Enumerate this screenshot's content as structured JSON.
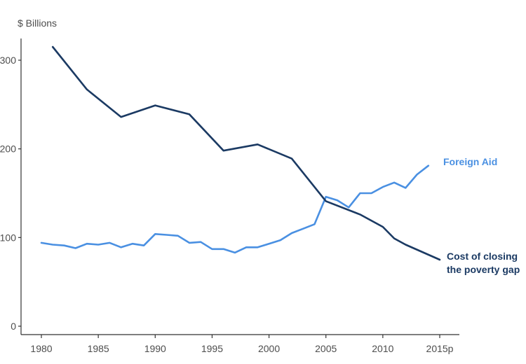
{
  "chart_data": {
    "type": "line",
    "title": "",
    "ylabel": "$ Billions",
    "xlabel": "",
    "xlim": [
      1980,
      2015
    ],
    "ylim": [
      0,
      320
    ],
    "x_ticks": [
      {
        "value": 1980,
        "label": "1980"
      },
      {
        "value": 1985,
        "label": "1985"
      },
      {
        "value": 1990,
        "label": "1990"
      },
      {
        "value": 1995,
        "label": "1995"
      },
      {
        "value": 2000,
        "label": "2000"
      },
      {
        "value": 2005,
        "label": "2005"
      },
      {
        "value": 2010,
        "label": "2010"
      },
      {
        "value": 2015,
        "label": "2015p"
      }
    ],
    "y_ticks": [
      {
        "value": 0,
        "label": "0"
      },
      {
        "value": 100,
        "label": "100"
      },
      {
        "value": 200,
        "label": "200"
      },
      {
        "value": 300,
        "label": "300"
      }
    ],
    "grid": false,
    "legend": "direct labels at line ends",
    "series": [
      {
        "name": "Foreign Aid",
        "color": "#4a90e2",
        "points": [
          [
            1980,
            94
          ],
          [
            1981,
            92
          ],
          [
            1982,
            91
          ],
          [
            1983,
            88
          ],
          [
            1984,
            93
          ],
          [
            1985,
            92
          ],
          [
            1986,
            94
          ],
          [
            1987,
            89
          ],
          [
            1988,
            93
          ],
          [
            1989,
            91
          ],
          [
            1990,
            104
          ],
          [
            1991,
            103
          ],
          [
            1992,
            102
          ],
          [
            1993,
            94
          ],
          [
            1994,
            95
          ],
          [
            1995,
            87
          ],
          [
            1996,
            87
          ],
          [
            1997,
            83
          ],
          [
            1998,
            89
          ],
          [
            1999,
            89
          ],
          [
            2000,
            93
          ],
          [
            2001,
            97
          ],
          [
            2002,
            105
          ],
          [
            2003,
            110
          ],
          [
            2004,
            115
          ],
          [
            2005,
            146
          ],
          [
            2006,
            142
          ],
          [
            2007,
            134
          ],
          [
            2008,
            150
          ],
          [
            2009,
            150
          ],
          [
            2010,
            157
          ],
          [
            2011,
            162
          ],
          [
            2012,
            156
          ],
          [
            2013,
            171
          ],
          [
            2014,
            181
          ]
        ]
      },
      {
        "name": "Cost of closing the poverty gap",
        "name_lines": [
          "Cost of closing",
          "the poverty gap"
        ],
        "color": "#1b3a63",
        "points": [
          [
            1981,
            315
          ],
          [
            1984,
            267
          ],
          [
            1987,
            236
          ],
          [
            1990,
            249
          ],
          [
            1993,
            239
          ],
          [
            1996,
            198
          ],
          [
            1999,
            205
          ],
          [
            2002,
            189
          ],
          [
            2005,
            141
          ],
          [
            2008,
            126
          ],
          [
            2010,
            112
          ],
          [
            2011,
            99
          ],
          [
            2012,
            92
          ],
          [
            2015,
            75
          ]
        ]
      }
    ]
  }
}
